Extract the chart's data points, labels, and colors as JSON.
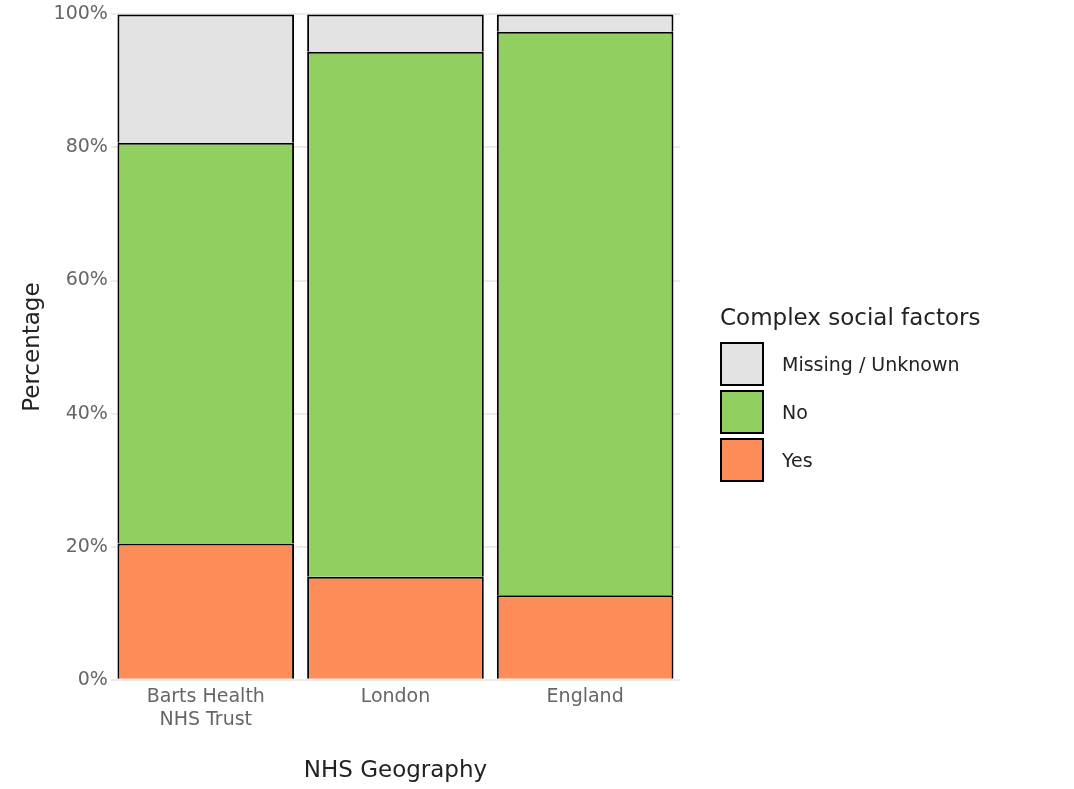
{
  "chart_data": {
    "type": "bar",
    "stacked": true,
    "xlabel": "NHS Geography",
    "ylabel": "Percentage",
    "legend_title": "Complex social factors",
    "legend": "right",
    "grid": "y",
    "categories": [
      "Barts Health NHS Trust",
      "London",
      "England"
    ],
    "series": [
      {
        "name": "Yes",
        "color": "#fc8d59",
        "values": [
          20.5,
          15.5,
          12.7
        ]
      },
      {
        "name": "No",
        "color": "#91cf60",
        "values": [
          60.2,
          78.9,
          84.7
        ]
      },
      {
        "name": "Missing / Unknown",
        "color": "#e3e3e3",
        "values": [
          19.3,
          5.6,
          2.6
        ]
      }
    ],
    "ylim": [
      0,
      100
    ],
    "yticks": [
      {
        "value": 0,
        "label": "0%"
      },
      {
        "value": 20,
        "label": "20%"
      },
      {
        "value": 40,
        "label": "40%"
      },
      {
        "value": 60,
        "label": "60%"
      },
      {
        "value": 80,
        "label": "80%"
      },
      {
        "value": 100,
        "label": "100%"
      }
    ]
  }
}
